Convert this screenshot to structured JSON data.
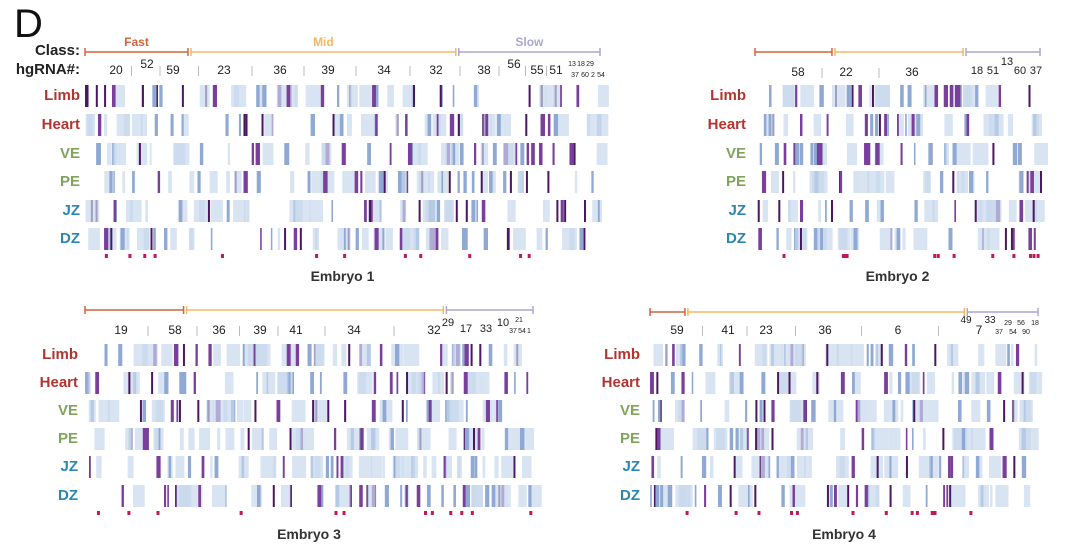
{
  "figure_label": "D",
  "header": {
    "class_label": "Class:",
    "hgrna_label": "hgRNA#:"
  },
  "classes": [
    "Fast",
    "Mid",
    "Slow"
  ],
  "rows": [
    "Limb",
    "Heart",
    "VE",
    "PE",
    "JZ",
    "DZ"
  ],
  "colors": {
    "fast": "#d2643a",
    "mid": "#f3b766",
    "slow": "#aaa7d2",
    "limb_heart": "#b3342f",
    "ve_pe": "#7fa55c",
    "jz_dz": "#2b86b4",
    "dark": "#4a1760",
    "purple": "#7a3f9c",
    "lightblue": "#c7d9ec",
    "pink": "#c2185b"
  },
  "panels": [
    {
      "title": "Embryo 1",
      "hgrnas": [
        "20",
        "52",
        "59",
        "23",
        "36",
        "39",
        "34",
        "32",
        "38",
        "56",
        "55",
        "51",
        "13",
        "18",
        "29",
        "37",
        "60",
        "2",
        "54"
      ]
    },
    {
      "title": "Embryo 2",
      "hgrnas": [
        "58",
        "22",
        "36",
        "18",
        "51",
        "13",
        "60",
        "37"
      ]
    },
    {
      "title": "Embryo 3",
      "hgrnas": [
        "19",
        "58",
        "36",
        "39",
        "41",
        "34",
        "32",
        "29",
        "17",
        "33",
        "10",
        "21",
        "37",
        "54",
        "1"
      ]
    },
    {
      "title": "Embryo 4",
      "hgrnas": [
        "59",
        "41",
        "23",
        "36",
        "6",
        "49",
        "7",
        "33",
        "37",
        "29",
        "54",
        "56",
        "90",
        "18"
      ]
    }
  ]
}
